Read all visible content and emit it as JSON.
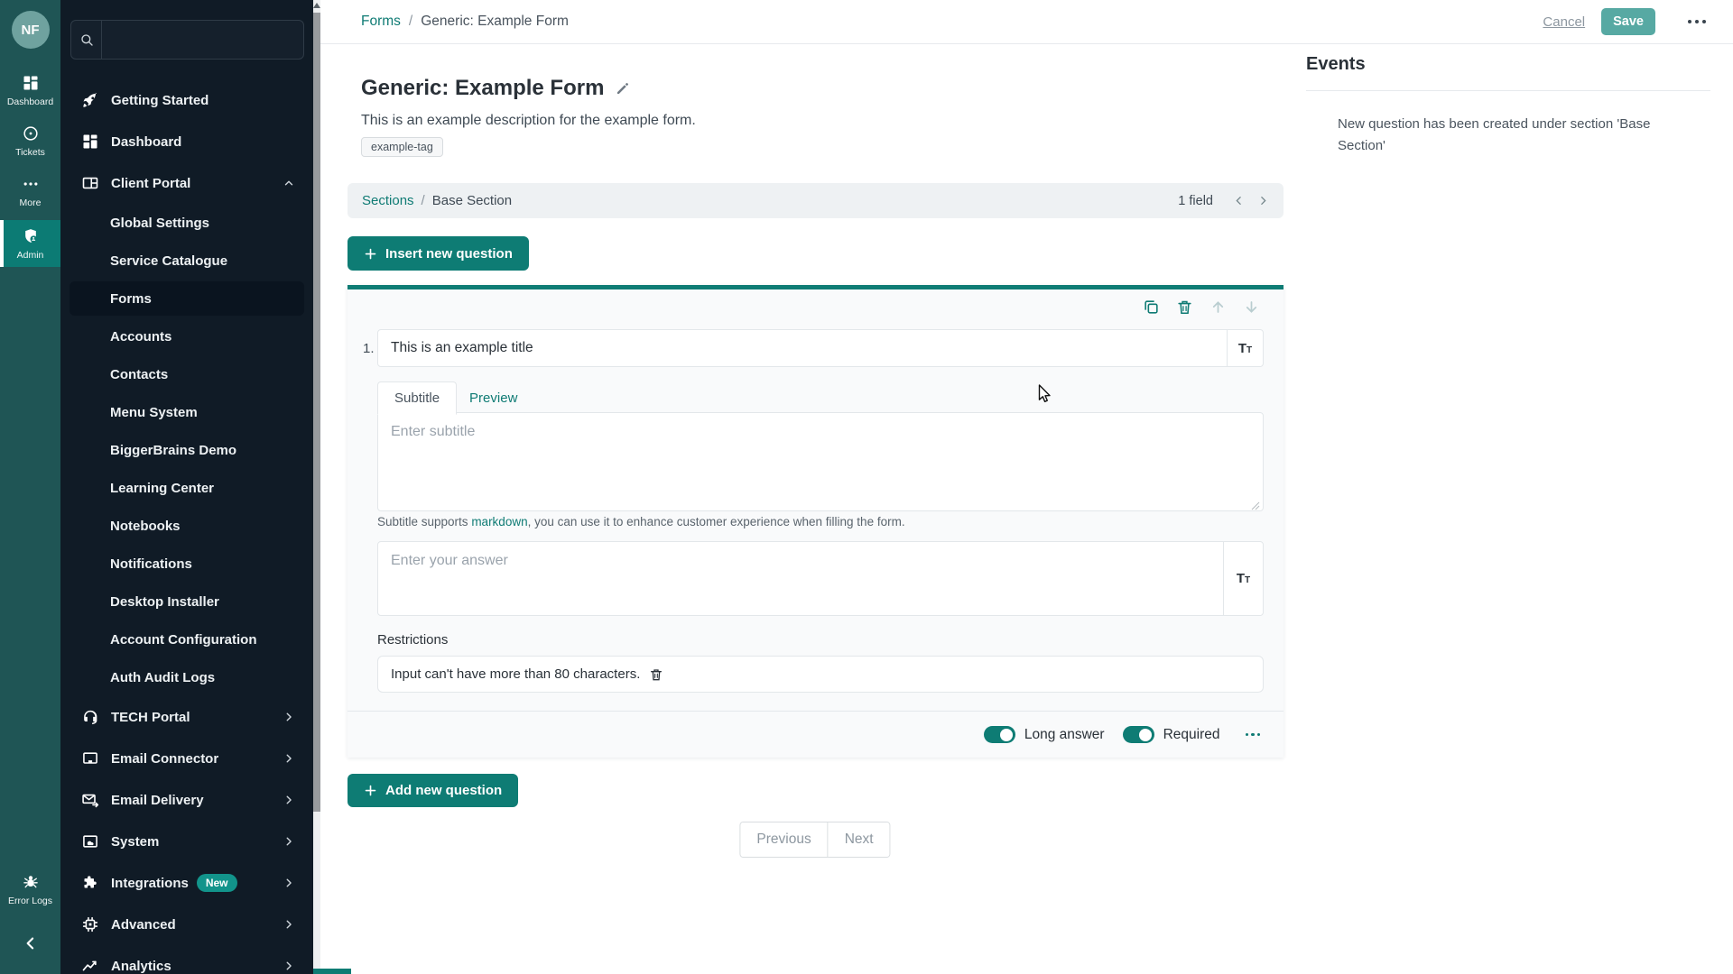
{
  "colors": {
    "accent": "#0E7C74",
    "save_button": "#57A9A3",
    "rail_bg": "#1F5555",
    "rail_active_bg": "#0C7B74",
    "sidebar_bg": "#101B26",
    "active_pill_bg": "#0A141F"
  },
  "rail": {
    "avatar_initials": "NF",
    "items": [
      {
        "id": "dashboard",
        "icon": "grid-icon",
        "label": "Dashboard",
        "active": false
      },
      {
        "id": "tickets",
        "icon": "record-circle-icon",
        "label": "Tickets",
        "active": false
      },
      {
        "id": "more",
        "icon": "ellipsis-icon",
        "label": "More",
        "active": false
      },
      {
        "id": "admin",
        "icon": "shield-user-icon",
        "label": "Admin",
        "active": true
      }
    ],
    "bottom_items": [
      {
        "id": "error-logs",
        "icon": "bug-icon",
        "label": "Error Logs"
      }
    ]
  },
  "sidebar": {
    "search_placeholder": "",
    "items": [
      {
        "label": "Getting Started",
        "icon": "rocket-icon",
        "type": "top"
      },
      {
        "label": "Dashboard",
        "icon": "grid-icon",
        "type": "top"
      },
      {
        "label": "Client Portal",
        "icon": "client-portal-icon",
        "type": "top",
        "chevron": "up"
      },
      {
        "label": "Global Settings",
        "type": "sub"
      },
      {
        "label": "Service Catalogue",
        "type": "sub"
      },
      {
        "label": "Forms",
        "type": "sub",
        "active": true
      },
      {
        "label": "Accounts",
        "type": "sub"
      },
      {
        "label": "Contacts",
        "type": "sub"
      },
      {
        "label": "Menu System",
        "type": "sub"
      },
      {
        "label": "BiggerBrains Demo",
        "type": "sub"
      },
      {
        "label": "Learning Center",
        "type": "sub"
      },
      {
        "label": "Notebooks",
        "type": "sub"
      },
      {
        "label": "Notifications",
        "type": "sub"
      },
      {
        "label": "Desktop Installer",
        "type": "sub"
      },
      {
        "label": "Account Configuration",
        "type": "sub"
      },
      {
        "label": "Auth Audit Logs",
        "type": "sub"
      },
      {
        "label": "TECH Portal",
        "icon": "headset-icon",
        "type": "top",
        "chevron": "right"
      },
      {
        "label": "Email Connector",
        "icon": "monitor-icon",
        "type": "top",
        "chevron": "right"
      },
      {
        "label": "Email Delivery",
        "icon": "mail-send-icon",
        "type": "top",
        "chevron": "right"
      },
      {
        "label": "System",
        "icon": "system-image-icon",
        "type": "top",
        "chevron": "right"
      },
      {
        "label": "Integrations",
        "icon": "puzzle-icon",
        "type": "top",
        "chevron": "right",
        "badge": "New"
      },
      {
        "label": "Advanced",
        "icon": "chip-icon",
        "type": "top",
        "chevron": "right"
      },
      {
        "label": "Analytics",
        "icon": "line-chart-icon",
        "type": "top",
        "chevron": "right"
      }
    ]
  },
  "header": {
    "breadcrumb_link": "Forms",
    "breadcrumb_separator": "/",
    "breadcrumb_current": "Generic: Example Form",
    "cancel_label": "Cancel",
    "save_label": "Save"
  },
  "form": {
    "title": "Generic: Example Form",
    "description": "This is an example description for the example form.",
    "tag": "example-tag"
  },
  "sections_bar": {
    "link": "Sections",
    "separator": "/",
    "current": "Base Section",
    "field_count": "1 field"
  },
  "buttons": {
    "insert_question": "Insert new question",
    "add_question": "Add new question"
  },
  "question": {
    "number": "1.",
    "title_value": "This is an example title",
    "tabs": [
      {
        "label": "Subtitle",
        "active": true
      },
      {
        "label": "Preview",
        "active": false
      }
    ],
    "subtitle_placeholder": "Enter subtitle",
    "subtitle_help": {
      "prefix": "Subtitle supports ",
      "link": "markdown",
      "suffix": ", you can use it to enhance customer experience when filling the form."
    },
    "answer_placeholder": "Enter your answer",
    "restrictions_label": "Restrictions",
    "restrictions": [
      {
        "text": "Input can't have more than 80 characters."
      }
    ],
    "toggles": [
      {
        "label": "Long answer",
        "on": true
      },
      {
        "label": "Required",
        "on": true
      }
    ]
  },
  "pagination": {
    "previous": "Previous",
    "next": "Next"
  },
  "events": {
    "title": "Events",
    "items": [
      "New question has been created under section 'Base Section'"
    ]
  }
}
